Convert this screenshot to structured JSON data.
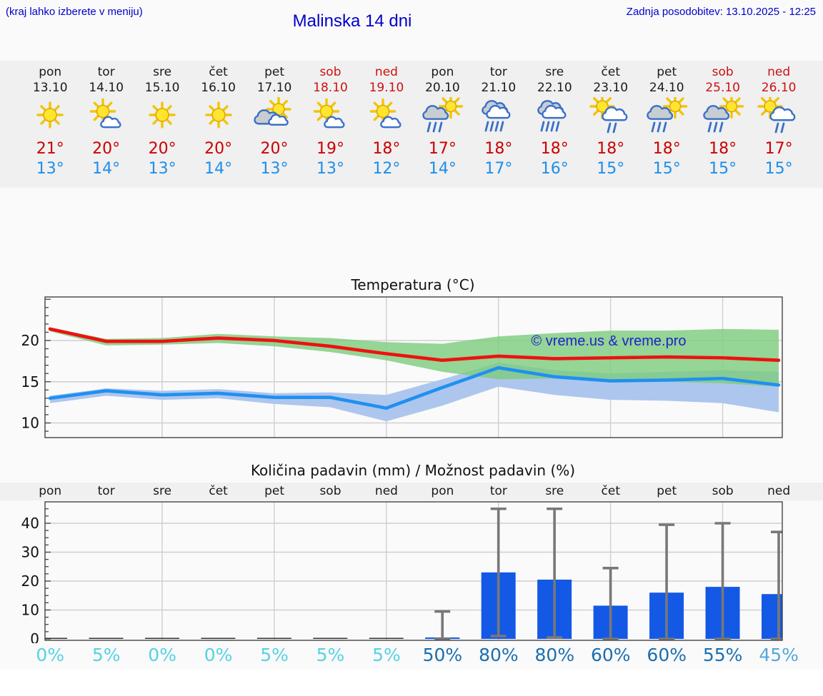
{
  "header": {
    "menu_link": "(kraj lahko izberete v meniju)",
    "title": "Malinska 14 dni",
    "last_update": "Zadnja posodobitev: 13.10.2025 - 12:25"
  },
  "colors": {
    "header_blue": "#0000cc",
    "weekend_red": "#cc1111",
    "high_temp_red": "#cc0000",
    "low_temp_blue": "#1e8ee8",
    "temp_max_line": "#ee1111",
    "temp_min_line": "#2090f0",
    "temp_max_band": "#7ccc7c",
    "temp_min_band": "#adc6ee",
    "precip_bar": "#1359e6",
    "whisker_gray": "#787878",
    "prob_low_cyan": "#55d2e4",
    "prob_high_blue": "#1b6fb0",
    "prob_mid_blue": "#55a8d8",
    "strip_bg": "#f0f0f0",
    "page_bg": "#fafafa"
  },
  "forecast": {
    "days": [
      {
        "name": "pon",
        "date": "13.10",
        "weekend": false,
        "icon": "sun",
        "high": "21°",
        "low": "13°"
      },
      {
        "name": "tor",
        "date": "14.10",
        "weekend": false,
        "icon": "sun-small-cloud",
        "high": "20°",
        "low": "14°"
      },
      {
        "name": "sre",
        "date": "15.10",
        "weekend": false,
        "icon": "sun",
        "high": "20°",
        "low": "13°"
      },
      {
        "name": "čet",
        "date": "16.10",
        "weekend": false,
        "icon": "sun",
        "high": "20°",
        "low": "14°"
      },
      {
        "name": "pet",
        "date": "17.10",
        "weekend": false,
        "icon": "sun-gray-cloud",
        "high": "20°",
        "low": "13°"
      },
      {
        "name": "sob",
        "date": "18.10",
        "weekend": true,
        "icon": "sun-small-cloud",
        "high": "19°",
        "low": "13°"
      },
      {
        "name": "ned",
        "date": "19.10",
        "weekend": true,
        "icon": "sun-small-cloud",
        "high": "18°",
        "low": "12°"
      },
      {
        "name": "pon",
        "date": "20.10",
        "weekend": false,
        "icon": "sun-shower",
        "high": "17°",
        "low": "14°"
      },
      {
        "name": "tor",
        "date": "21.10",
        "weekend": false,
        "icon": "heavy-rain",
        "high": "18°",
        "low": "17°"
      },
      {
        "name": "sre",
        "date": "22.10",
        "weekend": false,
        "icon": "heavy-rain",
        "high": "18°",
        "low": "16°"
      },
      {
        "name": "čet",
        "date": "23.10",
        "weekend": false,
        "icon": "sun-rain-left",
        "high": "18°",
        "low": "15°"
      },
      {
        "name": "pet",
        "date": "24.10",
        "weekend": false,
        "icon": "sun-shower",
        "high": "18°",
        "low": "15°"
      },
      {
        "name": "sob",
        "date": "25.10",
        "weekend": true,
        "icon": "sun-shower",
        "high": "18°",
        "low": "15°"
      },
      {
        "name": "ned",
        "date": "26.10",
        "weekend": true,
        "icon": "sun-rain-left",
        "high": "17°",
        "low": "15°"
      }
    ]
  },
  "chart_data": [
    {
      "type": "line",
      "title": "Temperatura (°C)",
      "x_labels": [
        "13.10",
        "14.10",
        "15.10",
        "16.10",
        "17.10",
        "18.10",
        "19.10",
        "20.10",
        "21.10",
        "22.10",
        "23.10",
        "24.10",
        "25.10",
        "26.10"
      ],
      "ylim": [
        8.2,
        25.3
      ],
      "yticks": [
        10,
        15,
        20
      ],
      "grid": true,
      "watermark": "© vreme.us & vreme.pro",
      "series": [
        {
          "name": "max temperature",
          "values": [
            21.4,
            19.9,
            19.9,
            20.3,
            20.0,
            19.3,
            18.4,
            17.6,
            18.1,
            17.8,
            17.9,
            18.0,
            17.9,
            17.6
          ]
        },
        {
          "name": "min temperature",
          "values": [
            13.0,
            13.9,
            13.4,
            13.6,
            13.1,
            13.1,
            11.8,
            14.3,
            16.7,
            15.6,
            15.1,
            15.2,
            15.4,
            14.6
          ]
        }
      ],
      "bands": [
        {
          "name": "max range",
          "upper": [
            21.6,
            20.2,
            20.3,
            20.8,
            20.5,
            20.3,
            19.8,
            19.6,
            20.5,
            20.9,
            21.2,
            21.2,
            21.4,
            21.3
          ],
          "lower": [
            21.1,
            19.4,
            19.5,
            19.7,
            19.3,
            18.6,
            17.6,
            16.2,
            15.3,
            15.4,
            15.2,
            15.0,
            14.8,
            14.4
          ]
        },
        {
          "name": "min range",
          "upper": [
            13.3,
            14.2,
            13.9,
            14.1,
            13.6,
            13.7,
            13.4,
            15.3,
            17.3,
            16.4,
            16.0,
            16.2,
            16.4,
            16.2
          ],
          "lower": [
            12.4,
            13.3,
            12.8,
            13.0,
            12.3,
            11.9,
            10.2,
            12.1,
            14.4,
            13.4,
            12.8,
            12.7,
            12.4,
            11.3
          ]
        }
      ]
    },
    {
      "type": "bar",
      "title": "Količina padavin (mm) / Možnost padavin (%)",
      "categories": [
        "pon",
        "tor",
        "sre",
        "čet",
        "pet",
        "sob",
        "ned",
        "pon",
        "tor",
        "sre",
        "čet",
        "pet",
        "sob",
        "ned"
      ],
      "values": [
        0,
        0,
        0,
        0,
        0,
        0,
        0,
        0.5,
        23,
        20.5,
        11.5,
        16,
        18,
        15.5
      ],
      "whisker_hi": [
        null,
        null,
        null,
        null,
        null,
        null,
        null,
        9.5,
        45,
        45,
        24.5,
        39.5,
        40,
        37
      ],
      "whisker_lo": [
        null,
        null,
        null,
        null,
        null,
        null,
        null,
        0,
        1,
        0.5,
        0,
        0,
        0,
        0
      ],
      "probabilities": [
        "0%",
        "5%",
        "0%",
        "0%",
        "5%",
        "5%",
        "5%",
        "50%",
        "80%",
        "80%",
        "60%",
        "60%",
        "55%",
        "45%"
      ],
      "probability_colors": [
        "#55d2e4",
        "#55d2e4",
        "#55d2e4",
        "#55d2e4",
        "#55d2e4",
        "#55d2e4",
        "#55d2e4",
        "#1b6fb0",
        "#1b6fb0",
        "#1b6fb0",
        "#1b6fb0",
        "#1b6fb0",
        "#1b6fb0",
        "#55a8d8"
      ],
      "ylim": [
        0,
        47
      ],
      "yticks": [
        0,
        10,
        20,
        30,
        40
      ],
      "grid": true
    }
  ]
}
